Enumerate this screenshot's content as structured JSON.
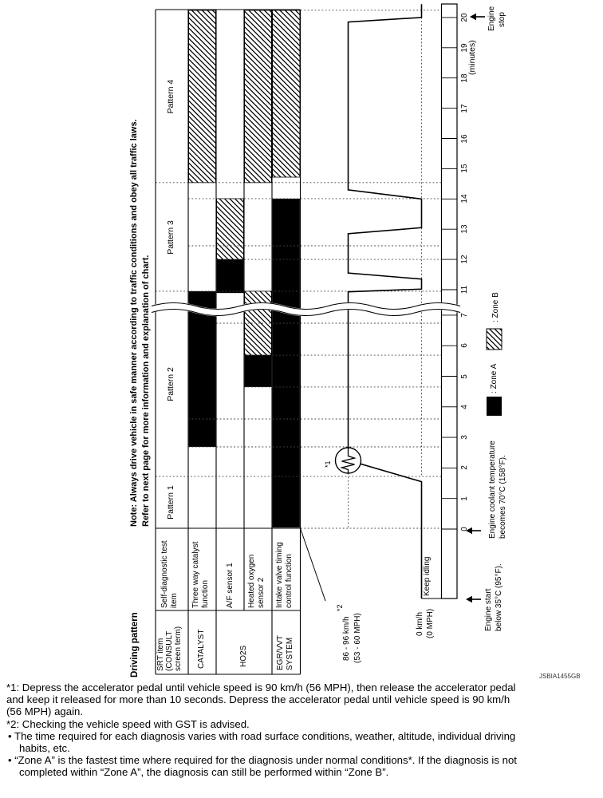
{
  "figure_code": "JSBIA1455GB",
  "note": {
    "line1": "Note: Always drive vehicle in safe manner according to traffic conditions and obey all traffic laws.",
    "line2": "Refer to next page for more information and explanation of chart."
  },
  "table": {
    "corner_label": "Driving pattern",
    "srt_header_lines": [
      "SRT item",
      "(CONSULT",
      "screen term)"
    ],
    "item_header_lines": [
      "Self-diagnostic test",
      "item"
    ],
    "catalyst": {
      "srt": "CATALYST",
      "item_lines": [
        "Three way catalyst",
        "function"
      ]
    },
    "ho2s": {
      "srt": "HO2S",
      "item_a": "A/F sensor 1",
      "item_b_lines": [
        "Heated oxygen",
        "sensor 2"
      ]
    },
    "egr": {
      "srt_lines": [
        "EGR/VVT",
        "SYSTEM"
      ],
      "item_lines": [
        "Intake valve timing",
        "control function"
      ]
    }
  },
  "legend": {
    "zone_a_label": ": Zone A",
    "zone_b_label": ": Zone B"
  },
  "speed_axis": {
    "cruise_label_lines": [
      "86 - 96 km/h",
      "(53 - 60 MPH)"
    ],
    "cruise_footnote_ref": "*2",
    "zero_label_lines": [
      "0 km/h",
      "(0 MPH)"
    ],
    "idle_label": "Keep idling",
    "maneuver_ref": "*1"
  },
  "time_axis": {
    "unit_label": "(minutes)",
    "upper_ticks": [
      20,
      19,
      18,
      17,
      16,
      15,
      14,
      13,
      12,
      11
    ],
    "lower_ticks": [
      7,
      6,
      5,
      4,
      3,
      2,
      1,
      0
    ]
  },
  "annotations": {
    "engine_stop_lines": [
      "Engine",
      "stop"
    ],
    "coolant_lines": [
      "Engine coolant temperature",
      "becomes 70°C (158°F)."
    ],
    "engine_start_lines": [
      "Engine start",
      "below 35°C (95°F)."
    ]
  },
  "footnotes": [
    "*1: Depress the accelerator pedal until vehicle speed is 90 km/h (56 MPH), then release the accelerator pedal",
    "and keep it released for more than 10 seconds. Depress the accelerator pedal until vehicle speed is 90 km/h",
    "(56 MPH) again.",
    "*2: Checking the vehicle speed with GST is advised.",
    "• The time required for each diagnosis varies with road surface conditions, weather, altitude, individual driving",
    "habits, etc.",
    "• “Zone A” is the fastest time where required for the diagnosis under normal conditions*. If the diagnosis is not",
    "completed within “Zone A”, the diagnosis can still be performed within “Zone B”."
  ],
  "chart_data": {
    "type": "line",
    "xlabel": "(minutes)",
    "x_range": [
      0,
      20
    ],
    "axis_break_t": [
      7,
      11
    ],
    "speed_levels_kmh": {
      "cruise_range": [
        86,
        96
      ],
      "stop": 0
    },
    "speed_profile": [
      [
        -2.27,
        0
      ],
      [
        1.55,
        0
      ],
      [
        2.25,
        91
      ],
      [
        10.93,
        91
      ],
      [
        11.02,
        0
      ],
      [
        11.35,
        0
      ],
      [
        11.55,
        91
      ],
      [
        12.85,
        91
      ],
      [
        13.05,
        0
      ],
      [
        14.0,
        0
      ],
      [
        14.3,
        91
      ],
      [
        19.85,
        91
      ],
      [
        20.0,
        0
      ],
      [
        20.44,
        0
      ]
    ],
    "pattern_spans": [
      {
        "label": "Pattern 1",
        "t": [
          0,
          1.72
        ]
      },
      {
        "label": "Pattern 2",
        "t": [
          1.72,
          10.92
        ]
      },
      {
        "label": "Pattern 3",
        "t": [
          10.92,
          14.54
        ]
      },
      {
        "label": "Pattern 4",
        "t": [
          14.54,
          20.24
        ]
      }
    ],
    "zone_segments": {
      "three_way_catalyst": [
        {
          "zone": "B",
          "t": [
            14.54,
            20.24
          ]
        },
        {
          "zone": "A",
          "t": [
            2.69,
            10.95
          ]
        }
      ],
      "af_sensor_1": [
        {
          "zone": "B",
          "t": [
            12.0,
            14.01
          ]
        },
        {
          "zone": "A",
          "t": [
            10.89,
            12.0
          ]
        }
      ],
      "heated_oxygen_sensor_2": [
        {
          "zone": "B",
          "t": [
            14.54,
            20.24
          ]
        },
        {
          "zone": "B",
          "t": [
            5.69,
            10.95
          ]
        },
        {
          "zone": "A",
          "t": [
            4.65,
            5.69
          ]
        }
      ],
      "egr_vvt_system": [
        {
          "zone": "B",
          "t": [
            14.72,
            20.24
          ]
        },
        {
          "zone": "A",
          "t": [
            0.05,
            14.01
          ]
        }
      ]
    }
  }
}
